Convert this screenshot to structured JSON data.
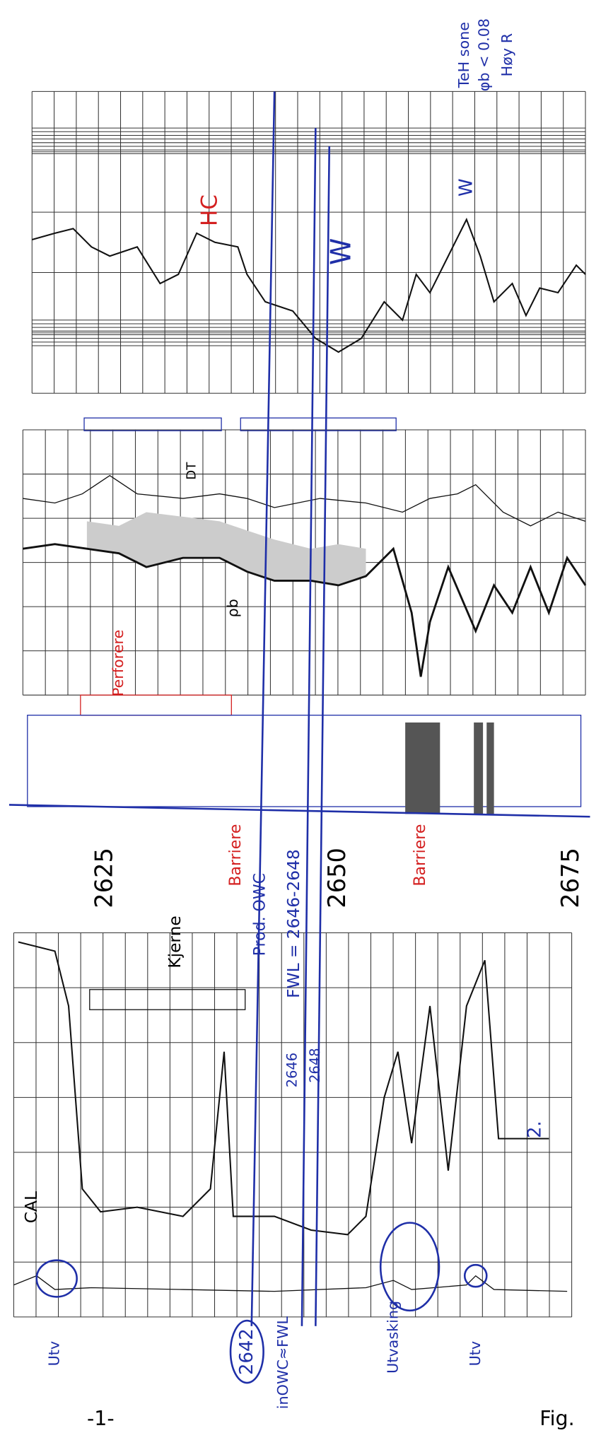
{
  "depth_labels": [
    "2625",
    "2650",
    "2675"
  ],
  "track3": {
    "zone_note": [
      "TeH sone",
      "φb < 0.08",
      "Høy R"
    ],
    "hc": "HC",
    "w_left": "W",
    "w_right": "W"
  },
  "track2": {
    "dt": "DT",
    "rho": "ρb",
    "perforate": "Perforere"
  },
  "barriers": [
    "Barriere",
    "Barriere"
  ],
  "contacts": {
    "prod_owc": "Prod. OWC",
    "fwl": "FWL = 2646-2648",
    "d1": "2646",
    "d2": "2648",
    "circled": "2642",
    "inowc": "inOWC≈FWL"
  },
  "track1": {
    "core": "Kjerne",
    "cal": "CAL",
    "two": "2.",
    "utv1": "Utv",
    "utvasking": "Utvasking",
    "utv2": "Utv"
  },
  "footer": {
    "page": "-1-",
    "fig": "Fig."
  }
}
